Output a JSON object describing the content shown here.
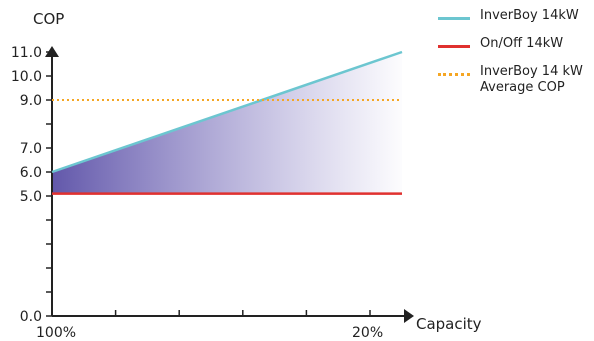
{
  "chart_data": {
    "type": "line",
    "ylabel": "COP",
    "xlabel": "Capacity",
    "x_tick_labels": [
      "100%",
      "20%"
    ],
    "y_tick_labels": [
      "11.0",
      "10.0",
      "9.0",
      "7.0",
      "6.0",
      "5.0",
      "0.0"
    ],
    "ylim": [
      0,
      12
    ],
    "grid": false,
    "legend_position": "top-right",
    "series": [
      {
        "name": "InverBoy 14kW",
        "color": "#6cc6d0",
        "style": "solid",
        "x": [
          "100%",
          "20%"
        ],
        "y": [
          6.0,
          11.0
        ]
      },
      {
        "name": "On/Off 14kW",
        "color": "#e0312f",
        "style": "solid",
        "x": [
          "100%",
          "20%"
        ],
        "y": [
          5.1,
          5.1
        ]
      },
      {
        "name": "InverBoy 14 kW\nAverage COP",
        "color": "#f5a623",
        "style": "dotted",
        "x": [
          "100%",
          "20%"
        ],
        "y": [
          9.0,
          9.0
        ]
      }
    ]
  }
}
